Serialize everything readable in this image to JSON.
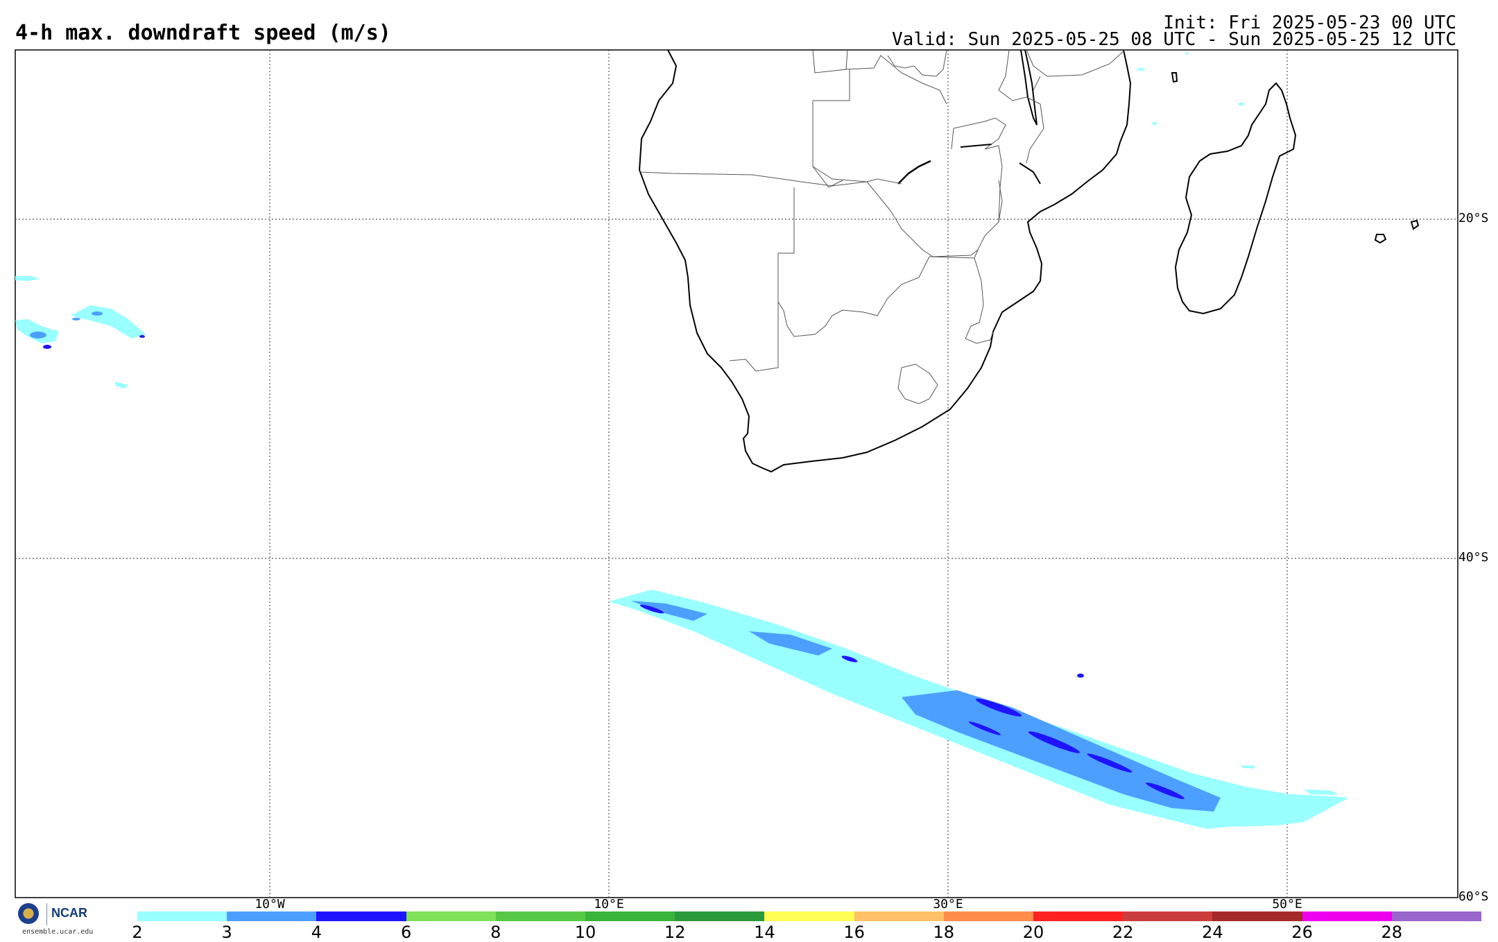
{
  "header": {
    "title": "4-h max. downdraft speed (m/s)",
    "init": "Init: Fri 2025-05-23 00 UTC",
    "valid": "Valid: Sun 2025-05-25 08 UTC - Sun 2025-05-25 12 UTC"
  },
  "map": {
    "lon_labels": [
      "10°W",
      "10°E",
      "30°E",
      "50°E"
    ],
    "lat_labels": [
      "20°S",
      "40°S",
      "60°S"
    ],
    "grid": "dotted"
  },
  "legend": {
    "colors": [
      "#99ffff",
      "#4d9fff",
      "#1f14ff",
      "#7fe05a",
      "#56c946",
      "#3ab43a",
      "#2a9a3a",
      "#ffff55",
      "#ffc266",
      "#ff8c4d",
      "#ff2222",
      "#cc3d3d",
      "#a52a2a",
      "#ee00ee",
      "#9966cc"
    ],
    "labels": [
      "2",
      "3",
      "4",
      "6",
      "8",
      "10",
      "12",
      "14",
      "16",
      "18",
      "20",
      "22",
      "24",
      "26",
      "28"
    ]
  },
  "logo": {
    "brand": "NCAR",
    "url": "ensemble.ucar.edu"
  }
}
